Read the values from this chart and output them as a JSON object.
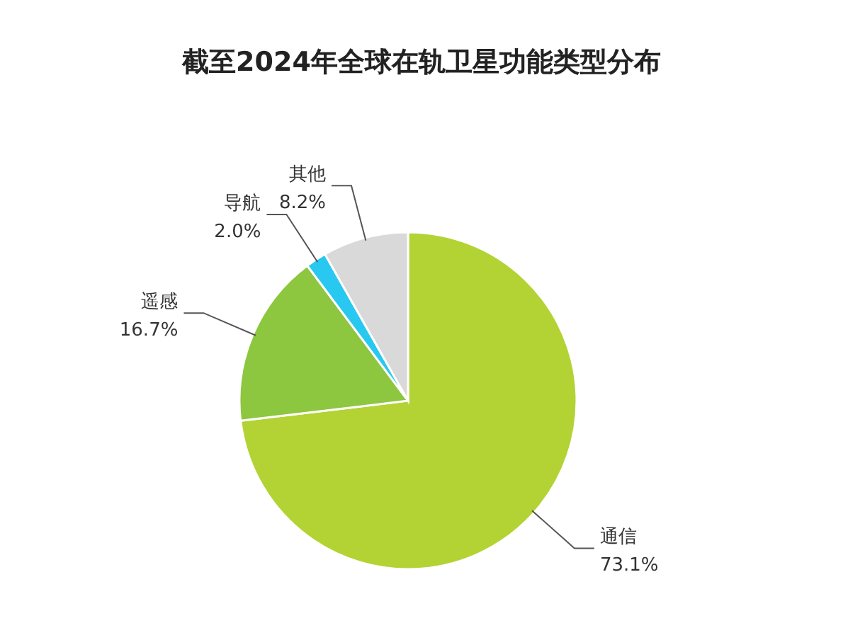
{
  "chart_data": {
    "type": "pie",
    "title": "截至2024年全球在轨卫星功能类型分布",
    "categories": [
      "通信",
      "遥感",
      "导航",
      "其他"
    ],
    "values": [
      73.1,
      16.7,
      2.0,
      8.2
    ],
    "value_labels": [
      "73.1%",
      "16.7%",
      "2.0%",
      "8.2%"
    ],
    "colors": [
      "#b3d334",
      "#8dc63f",
      "#29c8f0",
      "#d9d9d9"
    ]
  }
}
